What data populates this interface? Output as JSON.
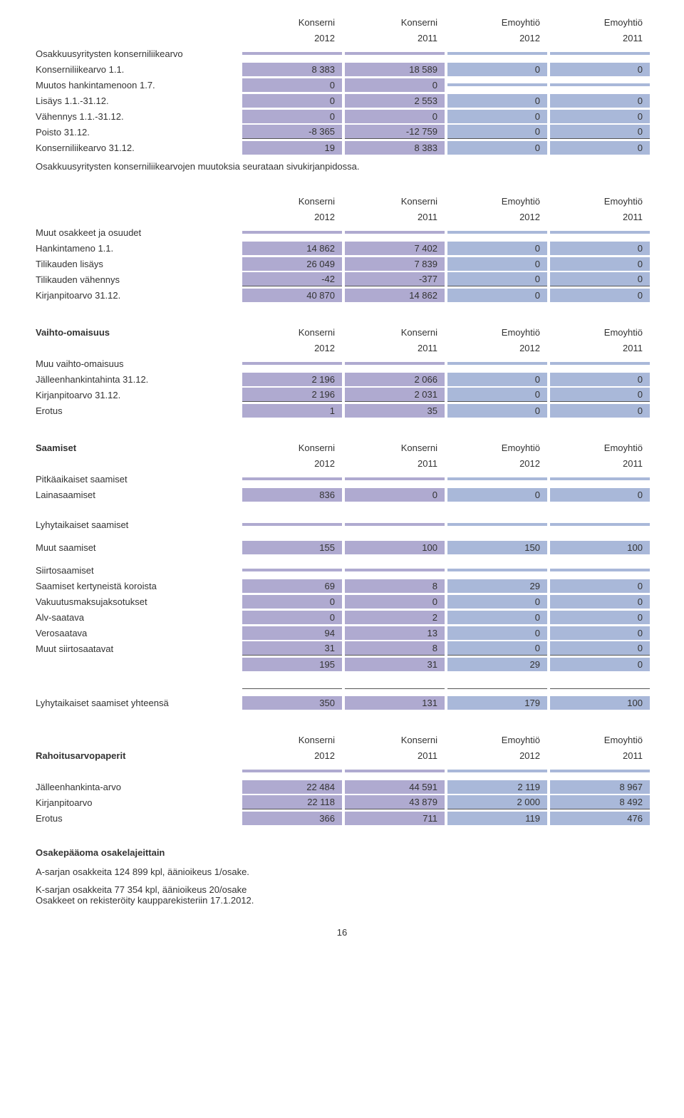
{
  "colors": {
    "purple": "#afaad0",
    "blue": "#a9b8d9",
    "underline": "#555555"
  },
  "column_headers": {
    "c1a": "Konserni",
    "c1b": "2012",
    "c2a": "Konserni",
    "c2b": "2011",
    "c3a": "Emoyhtiö",
    "c3b": "2012",
    "c4a": "Emoyhtiö",
    "c4b": "2011"
  },
  "s1": {
    "title": "Osakkuusyritysten konserniliikearvo",
    "rows": [
      {
        "label": "Konserniliikearvo 1.1.",
        "v": [
          "8 383",
          "18 589",
          "0",
          "0"
        ]
      },
      {
        "label": "Muutos hankintamenoon 1.7.",
        "v": [
          "0",
          "0",
          "",
          ""
        ]
      },
      {
        "label": "Lisäys 1.1.-31.12.",
        "v": [
          "0",
          "2 553",
          "0",
          "0"
        ]
      },
      {
        "label": "Vähennys 1.1.-31.12.",
        "v": [
          "0",
          "0",
          "0",
          "0"
        ]
      },
      {
        "label": "Poisto 31.12.",
        "v": [
          "-8 365",
          "-12 759",
          "0",
          "0"
        ],
        "underline": true
      },
      {
        "label": "Konserniliikearvo 31.12.",
        "v": [
          "19",
          "8 383",
          "0",
          "0"
        ],
        "total": true
      }
    ],
    "note": "Osakkuusyritysten konserniliikearvojen muutoksia seurataan sivukirjanpidossa."
  },
  "s2": {
    "title": "Muut osakkeet ja osuudet",
    "rows": [
      {
        "label": "Hankintameno 1.1.",
        "v": [
          "14 862",
          "7 402",
          "0",
          "0"
        ]
      },
      {
        "label": "Tilikauden lisäys",
        "v": [
          "26 049",
          "7 839",
          "0",
          "0"
        ]
      },
      {
        "label": "Tilikauden vähennys",
        "v": [
          "-42",
          "-377",
          "0",
          "0"
        ],
        "underline": true
      },
      {
        "label": "Kirjanpitoarvo 31.12.",
        "v": [
          "40 870",
          "14 862",
          "0",
          "0"
        ],
        "total": true
      }
    ]
  },
  "s3": {
    "heading": "Vaihto-omaisuus",
    "subtitle": "Muu vaihto-omaisuus",
    "rows": [
      {
        "label": "Jälleenhankintahinta 31.12.",
        "v": [
          "2 196",
          "2 066",
          "0",
          "0"
        ]
      },
      {
        "label": "Kirjanpitoarvo 31.12.",
        "v": [
          "2 196",
          "2 031",
          "0",
          "0"
        ],
        "underline": true
      },
      {
        "label": "Erotus",
        "v": [
          "1",
          "35",
          "0",
          "0"
        ],
        "total": true
      }
    ]
  },
  "s4": {
    "heading": "Saamiset",
    "sub1": "Pitkäaikaiset saamiset",
    "row1": {
      "label": "Lainasaamiset",
      "v": [
        "836",
        "0",
        "0",
        "0"
      ]
    },
    "sub2": "Lyhytaikaiset saamiset",
    "row2": {
      "label": "Muut saamiset",
      "v": [
        "155",
        "100",
        "150",
        "100"
      ]
    },
    "sub3": "Siirtosaamiset",
    "rows3": [
      {
        "label": "Saamiset kertyneistä koroista",
        "v": [
          "69",
          "8",
          "29",
          "0"
        ]
      },
      {
        "label": "Vakuutusmaksujaksotukset",
        "v": [
          "0",
          "0",
          "0",
          "0"
        ]
      },
      {
        "label": "Alv-saatava",
        "v": [
          "0",
          "2",
          "0",
          "0"
        ]
      },
      {
        "label": "Verosaatava",
        "v": [
          "94",
          "13",
          "0",
          "0"
        ]
      },
      {
        "label": "Muut siirtosaatavat",
        "v": [
          "31",
          "8",
          "0",
          "0"
        ],
        "underline": true
      },
      {
        "label": "",
        "v": [
          "195",
          "31",
          "29",
          "0"
        ],
        "total": true
      }
    ],
    "row_total": {
      "label": "Lyhytaikaiset saamiset yhteensä",
      "v": [
        "350",
        "131",
        "179",
        "100"
      ]
    }
  },
  "s5": {
    "heading": "Rahoitusarvopaperit",
    "rows": [
      {
        "label": "Jälleenhankinta-arvo",
        "v": [
          "22 484",
          "44 591",
          "2 119",
          "8 967"
        ]
      },
      {
        "label": "Kirjanpitoarvo",
        "v": [
          "22 118",
          "43 879",
          "2 000",
          "8 492"
        ],
        "underline": true
      },
      {
        "label": "Erotus",
        "v": [
          "366",
          "711",
          "119",
          "476"
        ],
        "total": true
      }
    ]
  },
  "s6": {
    "title": "Osakepääoma osakelajeittain",
    "lines": [
      "A-sarjan osakkeita 124 899 kpl, äänioikeus 1/osake.",
      "K-sarjan osakkeita 77 354 kpl, äänioikeus 20/osake",
      "Osakkeet on rekisteröity kaupparekisteriin 17.1.2012."
    ]
  },
  "page_number": "16"
}
